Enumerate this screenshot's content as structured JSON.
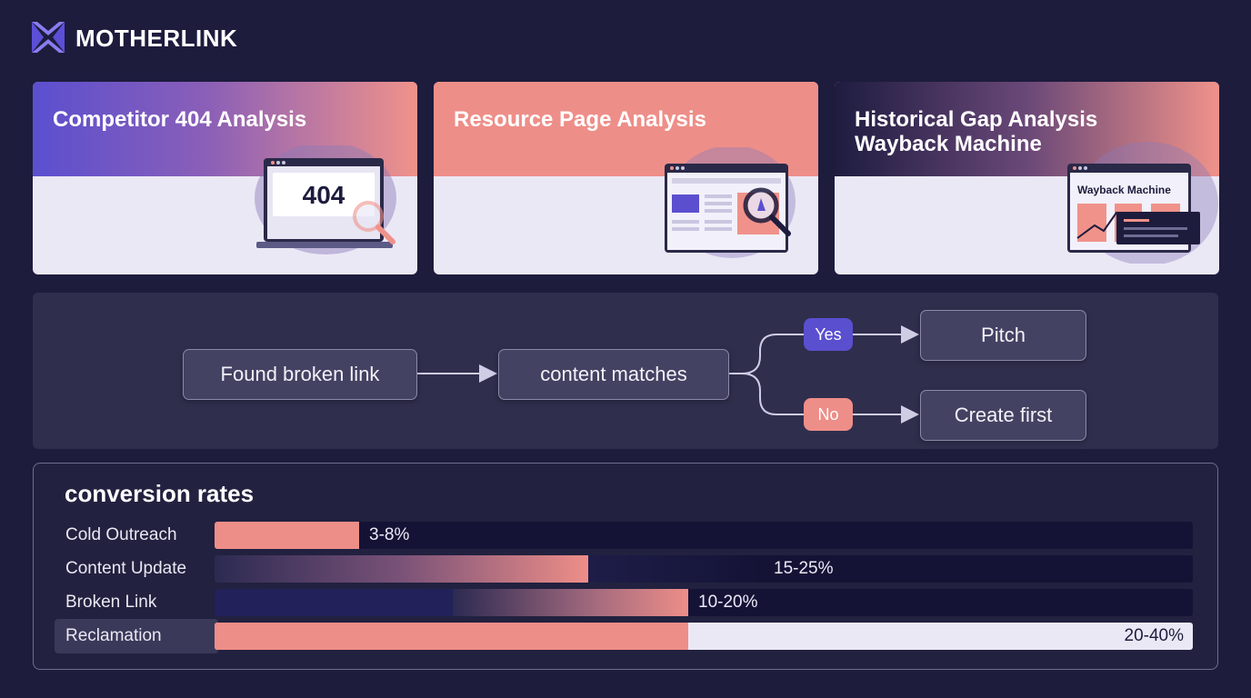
{
  "header": {
    "brand": "MOTHERLINK",
    "logo_icon": "motherlink-logo-icon"
  },
  "cards": [
    {
      "title": "Competitor 404 Analysis",
      "illustration_text": "404",
      "icon": "magnifier-404-icon"
    },
    {
      "title": "Resource Page Analysis",
      "icon": "resource-page-search-icon"
    },
    {
      "title": "Historical Gap Analysis\nWayback Machine",
      "illustration_text": "Wayback Machine",
      "icon": "wayback-machine-icon"
    }
  ],
  "flow": {
    "found": "Found broken link",
    "matches": "content matches",
    "yes": "Yes",
    "no": "No",
    "pitch": "Pitch",
    "create": "Create first",
    "colors": {
      "yes": "#5a4fcf",
      "no": "#ee8e88"
    }
  },
  "conversion": {
    "title": "conversion rates",
    "rows": [
      {
        "label": "Cold Outreach",
        "value": "3-8%",
        "range": [
          3,
          8
        ]
      },
      {
        "label": "Content Update",
        "value": "15-25%",
        "range": [
          15,
          25
        ]
      },
      {
        "label": "Broken Link",
        "value": "10-20%",
        "range": [
          10,
          20
        ]
      },
      {
        "label": "Reclamation",
        "value": "20-40%",
        "range": [
          20,
          40
        ]
      }
    ],
    "colors": {
      "accent": "#ee8e88",
      "track": "#141336"
    }
  }
}
